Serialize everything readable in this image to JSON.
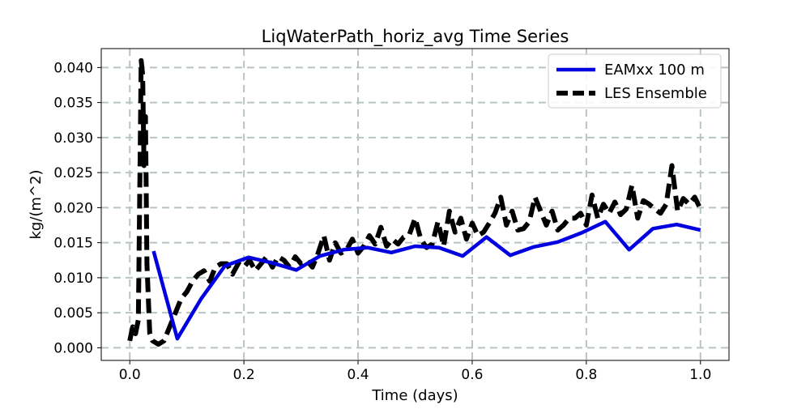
{
  "chart_data": {
    "type": "line",
    "title": "LiqWaterPath_horiz_avg Time Series",
    "xlabel": "Time (days)",
    "ylabel": "kg/(m^2)",
    "xlim": [
      -0.05,
      1.05
    ],
    "ylim": [
      -0.0018,
      0.0427
    ],
    "xticks": [
      0.0,
      0.2,
      0.4,
      0.6,
      0.8,
      1.0
    ],
    "xtick_labels": [
      "0.0",
      "0.2",
      "0.4",
      "0.6",
      "0.8",
      "1.0"
    ],
    "yticks": [
      0.0,
      0.005,
      0.01,
      0.015,
      0.02,
      0.025,
      0.03,
      0.035,
      0.04
    ],
    "ytick_labels": [
      "0.000",
      "0.005",
      "0.010",
      "0.015",
      "0.020",
      "0.025",
      "0.030",
      "0.035",
      "0.040"
    ],
    "grid": true,
    "legend_position": "top-right",
    "series": [
      {
        "name": "EAMxx 100 m",
        "color": "#0000e0",
        "linestyle": "solid",
        "x": [
          0.0417,
          0.0833,
          0.125,
          0.1667,
          0.2083,
          0.25,
          0.2917,
          0.3333,
          0.375,
          0.4167,
          0.4583,
          0.5,
          0.5417,
          0.5833,
          0.625,
          0.6667,
          0.7083,
          0.75,
          0.7917,
          0.8333,
          0.875,
          0.9167,
          0.9583,
          1.0
        ],
        "y": [
          0.0138,
          0.0013,
          0.007,
          0.0117,
          0.0129,
          0.0121,
          0.0111,
          0.0131,
          0.014,
          0.0143,
          0.0136,
          0.0145,
          0.0143,
          0.0131,
          0.0158,
          0.0132,
          0.0144,
          0.0151,
          0.0164,
          0.018,
          0.014,
          0.017,
          0.0176,
          0.0168
        ]
      },
      {
        "name": "LES Ensemble",
        "color": "#000000",
        "linestyle": "dashed",
        "x": [
          0.0,
          0.005,
          0.01,
          0.015,
          0.02,
          0.0225,
          0.025,
          0.0275,
          0.03,
          0.035,
          0.04,
          0.05,
          0.06,
          0.07,
          0.08,
          0.09,
          0.1,
          0.11,
          0.12,
          0.13,
          0.14,
          0.15,
          0.16,
          0.17,
          0.18,
          0.19,
          0.2,
          0.21,
          0.22,
          0.23,
          0.24,
          0.25,
          0.26,
          0.27,
          0.28,
          0.29,
          0.3,
          0.31,
          0.32,
          0.33,
          0.34,
          0.35,
          0.36,
          0.37,
          0.38,
          0.39,
          0.4,
          0.41,
          0.42,
          0.43,
          0.44,
          0.45,
          0.46,
          0.47,
          0.48,
          0.49,
          0.5,
          0.51,
          0.52,
          0.53,
          0.54,
          0.55,
          0.56,
          0.57,
          0.58,
          0.59,
          0.6,
          0.61,
          0.62,
          0.63,
          0.64,
          0.65,
          0.66,
          0.67,
          0.68,
          0.69,
          0.7,
          0.71,
          0.72,
          0.73,
          0.74,
          0.75,
          0.76,
          0.77,
          0.78,
          0.79,
          0.8,
          0.81,
          0.82,
          0.83,
          0.84,
          0.85,
          0.86,
          0.87,
          0.88,
          0.89,
          0.9,
          0.91,
          0.92,
          0.93,
          0.94,
          0.95,
          0.96,
          0.97,
          0.98,
          0.99,
          1.0
        ],
        "y": [
          0.001,
          0.003,
          0.002,
          0.004,
          0.041,
          0.039,
          0.026,
          0.033,
          0.012,
          0.002,
          0.001,
          0.0005,
          0.001,
          0.003,
          0.005,
          0.007,
          0.008,
          0.0095,
          0.0105,
          0.011,
          0.0095,
          0.0115,
          0.012,
          0.012,
          0.0105,
          0.012,
          0.0115,
          0.0125,
          0.011,
          0.012,
          0.013,
          0.0115,
          0.013,
          0.0125,
          0.0115,
          0.013,
          0.012,
          0.0125,
          0.0115,
          0.0135,
          0.016,
          0.0125,
          0.015,
          0.0135,
          0.014,
          0.0155,
          0.0135,
          0.0145,
          0.016,
          0.0148,
          0.0172,
          0.0145,
          0.0155,
          0.0148,
          0.0158,
          0.0162,
          0.0185,
          0.0155,
          0.0143,
          0.0148,
          0.018,
          0.0145,
          0.0195,
          0.0165,
          0.0185,
          0.0155,
          0.0178,
          0.016,
          0.0165,
          0.0178,
          0.0192,
          0.0215,
          0.0175,
          0.0195,
          0.0168,
          0.017,
          0.018,
          0.0215,
          0.0195,
          0.0175,
          0.0195,
          0.0168,
          0.0175,
          0.0185,
          0.0185,
          0.0192,
          0.0175,
          0.0218,
          0.0185,
          0.0205,
          0.0192,
          0.0208,
          0.019,
          0.0198,
          0.0232,
          0.0185,
          0.021,
          0.0205,
          0.0198,
          0.0192,
          0.0205,
          0.026,
          0.0195,
          0.0213,
          0.0205,
          0.0215,
          0.0198
        ]
      }
    ]
  }
}
